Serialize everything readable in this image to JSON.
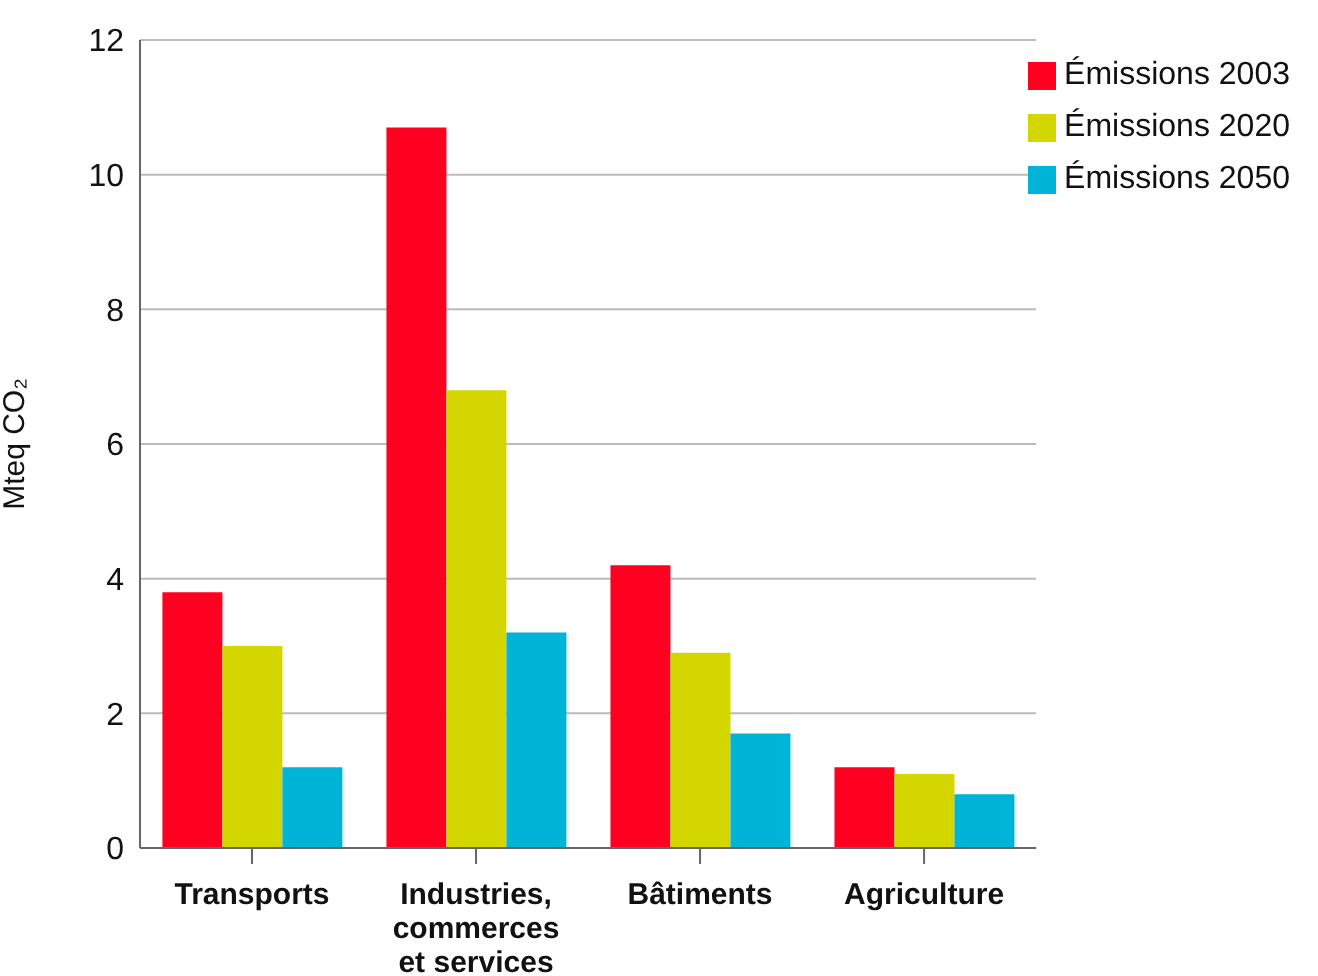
{
  "chart_data": {
    "type": "bar",
    "ylabel": "Mteq CO₂",
    "categories": [
      "Transports",
      "Industries, commerces et services",
      "Bâtiments",
      "Agriculture"
    ],
    "series": [
      {
        "name": "Émissions 2003",
        "color": "#ff0020",
        "values": [
          3.8,
          10.7,
          4.2,
          1.2
        ]
      },
      {
        "name": "Émissions 2020",
        "color": "#d4d600",
        "values": [
          3.0,
          6.8,
          2.9,
          1.1
        ]
      },
      {
        "name": "Émissions 2050",
        "color": "#00b4d8",
        "values": [
          1.2,
          3.2,
          1.7,
          0.8
        ]
      }
    ],
    "ylim": [
      0,
      12
    ],
    "yticks": [
      0,
      2,
      4,
      6,
      8,
      10,
      12
    ],
    "grid": "y",
    "legend": "top right"
  }
}
